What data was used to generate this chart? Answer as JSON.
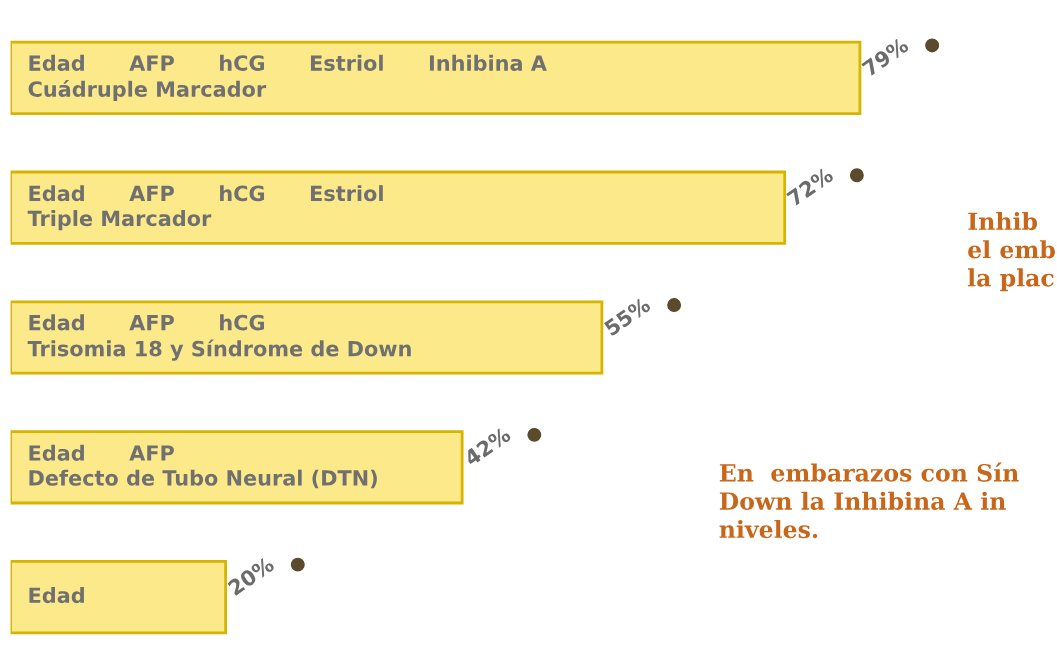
{
  "chart_data": {
    "type": "bar",
    "orientation": "horizontal",
    "categories": [
      "Edad      AFP      hCG      Estriol      Inhibina A\nCuádruple Marcador",
      "Edad      AFP      hCG      Estriol\nTriple Marcador",
      "Edad      AFP      hCG\nTrisomia 18 y Síndrome de Down",
      "Edad      AFP\nDefecto de Tubo Neural (DTN)",
      "Edad"
    ],
    "values": [
      79,
      72,
      55,
      42,
      20
    ],
    "value_labels": [
      "79%",
      "72%",
      "55%",
      "42%",
      "20%"
    ],
    "color": "#fbe98a",
    "legend": false,
    "annotations": [
      "Inhib\nel emb\nla plac",
      "En  embarazos con Sín\nDown la Inhibina A in\nniveles."
    ]
  }
}
